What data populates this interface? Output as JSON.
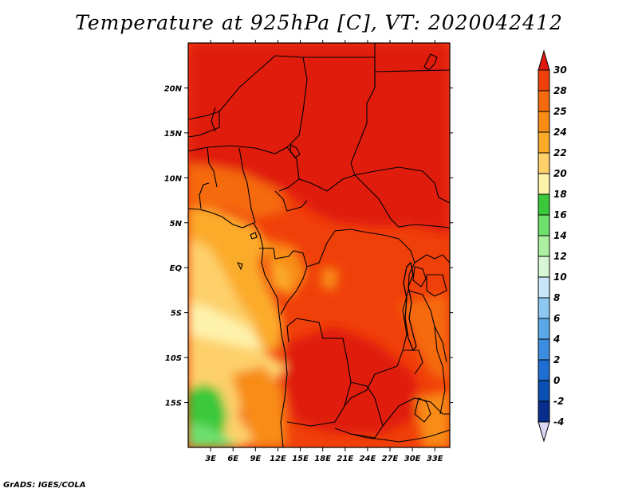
{
  "title": "Temperature at 925hPa [C], VT: 2020042412",
  "footer": "GrADS: IGES/COLA",
  "chart_data": {
    "type": "heatmap",
    "variable": "Temperature at 925hPa",
    "units": "C",
    "valid_time": "2020042412",
    "lon_range": [
      0,
      35
    ],
    "lat_range": [
      -20,
      25
    ],
    "x_ticks": [
      "3E",
      "6E",
      "9E",
      "12E",
      "15E",
      "18E",
      "21E",
      "24E",
      "27E",
      "30E",
      "33E"
    ],
    "x_tick_values": [
      3,
      6,
      9,
      12,
      15,
      18,
      21,
      24,
      27,
      30,
      33
    ],
    "y_ticks": [
      "20N",
      "15N",
      "10N",
      "5N",
      "EQ",
      "5S",
      "10S",
      "15S"
    ],
    "y_tick_values": [
      20,
      15,
      10,
      5,
      0,
      -5,
      -10,
      -15
    ],
    "colorbar": {
      "labels": [
        "30",
        "28",
        "25",
        "24",
        "22",
        "20",
        "18",
        "16",
        "14",
        "12",
        "10",
        "8",
        "6",
        "4",
        "2",
        "0",
        "-2",
        "-4"
      ],
      "colors": [
        "#e01a0f",
        "#f0400a",
        "#f56a0f",
        "#f88c14",
        "#fbab2a",
        "#fdd06a",
        "#fef2aa",
        "#3ac83a",
        "#6ee06e",
        "#aaf0a0",
        "#d6f6d4",
        "#c8e6fa",
        "#8cc8f0",
        "#5aa8e8",
        "#3c8ce0",
        "#1e6ed2",
        "#0a50b4",
        "#082d8c",
        "#0a0a50",
        "#d8d8f2"
      ]
    }
  }
}
